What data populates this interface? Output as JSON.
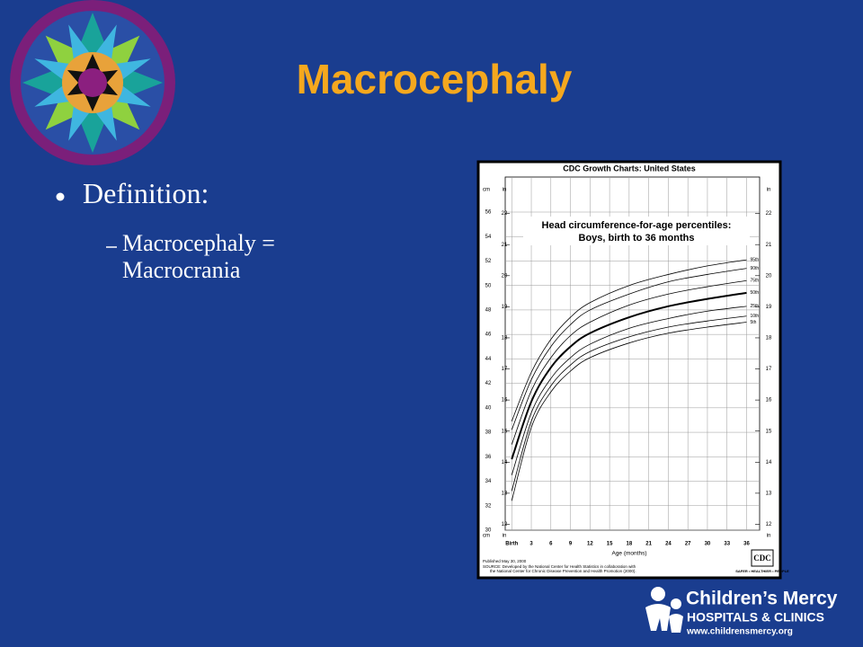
{
  "title": "Macrocephaly",
  "bullets": [
    {
      "text": "Definition:",
      "sub": [
        "Macrocephaly = Macrocrania"
      ]
    }
  ],
  "logo": {
    "name": "Children’s Mercy",
    "line2": "HOSPITALS & CLINICS",
    "url": "www.childrensmercy.org"
  },
  "chart_data": {
    "type": "line",
    "header": "CDC Growth Charts: United States",
    "title": "Head circumference-for-age percentiles:",
    "subtitle": "Boys, birth to 36 months",
    "xlabel": "Age (months)",
    "ylabel": "cm",
    "y2label": "in",
    "x": [
      0,
      3,
      6,
      9,
      12,
      18,
      24,
      30,
      36
    ],
    "xlim": [
      -1,
      38
    ],
    "xticks": [
      {
        "value": 0,
        "label": "Birth"
      },
      3,
      6,
      9,
      12,
      15,
      18,
      21,
      24,
      27,
      30,
      33,
      36
    ],
    "ylim": [
      30,
      56
    ],
    "yticks": [
      30,
      32,
      34,
      36,
      38,
      40,
      42,
      44,
      46,
      48,
      50,
      52,
      54,
      56
    ],
    "y2lim": [
      11.811,
      22.047
    ],
    "y2ticks": [
      12,
      13,
      14,
      15,
      16,
      17,
      18,
      19,
      20,
      21,
      22
    ],
    "grid": true,
    "series": [
      {
        "name": "95th",
        "color": "#000000",
        "values": [
          38.9,
          42.9,
          45.6,
          47.4,
          48.6,
          50.0,
          50.9,
          51.6,
          52.1
        ]
      },
      {
        "name": "90th",
        "color": "#000000",
        "values": [
          38.2,
          42.3,
          45.0,
          46.8,
          48.0,
          49.3,
          50.3,
          50.9,
          51.4
        ]
      },
      {
        "name": "75th",
        "color": "#000000",
        "values": [
          37.0,
          41.4,
          44.1,
          45.9,
          47.0,
          48.4,
          49.3,
          49.9,
          50.4
        ]
      },
      {
        "name": "50th",
        "color": "#000000",
        "values": [
          35.8,
          40.5,
          43.3,
          45.0,
          46.1,
          47.4,
          48.3,
          48.9,
          49.4
        ]
      },
      {
        "name": "25th",
        "color": "#000000",
        "values": [
          34.5,
          39.6,
          42.4,
          44.1,
          45.2,
          46.5,
          47.3,
          47.9,
          48.3
        ]
      },
      {
        "name": "10th",
        "color": "#000000",
        "values": [
          33.2,
          38.9,
          41.8,
          43.5,
          44.6,
          45.8,
          46.6,
          47.1,
          47.5
        ]
      },
      {
        "name": "5th",
        "color": "#000000",
        "values": [
          32.4,
          38.4,
          41.3,
          43.0,
          44.1,
          45.3,
          46.1,
          46.6,
          47.0
        ]
      }
    ],
    "published": "Published May 30, 2000",
    "source": [
      "SOURCE: Developed by the National Center for Health Statistics in collaboration with",
      "the National Center for Chronic Disease Prevention and Health Promotion (2000)."
    ],
    "agency": "CDC",
    "motto": "SAFER • HEALTHIER • PEOPLE"
  }
}
